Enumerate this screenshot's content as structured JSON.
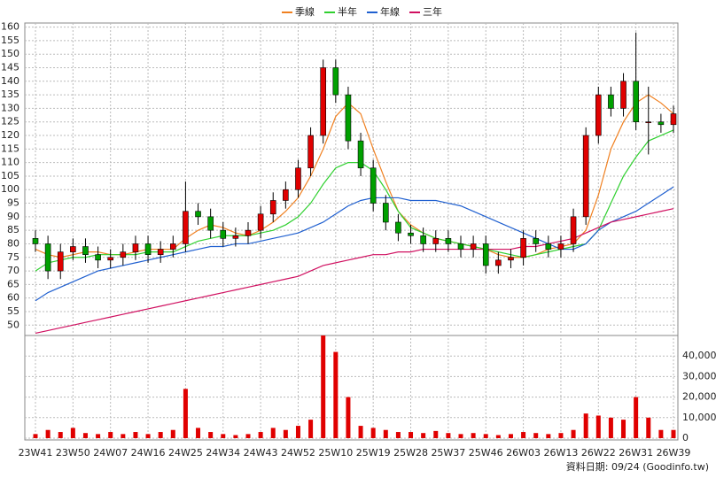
{
  "chart_data": {
    "type": "candlestick",
    "categories": [
      "23W41",
      null,
      null,
      "23W50",
      null,
      null,
      "24W07",
      null,
      null,
      "24W16",
      null,
      null,
      "24W25",
      null,
      null,
      "24W34",
      null,
      null,
      "24W43",
      null,
      null,
      "24W52",
      null,
      null,
      "25W10",
      null,
      null,
      "25W19",
      null,
      null,
      "25W28",
      null,
      null,
      "25W37",
      null,
      null,
      "25W46",
      null,
      null,
      "26W03",
      null,
      null,
      "26W13",
      null,
      null,
      "26W22",
      null,
      null,
      "26W31",
      null,
      null,
      "26W39"
    ],
    "open": [
      82,
      80,
      70,
      77,
      79,
      76,
      74,
      75,
      77,
      80,
      76,
      78,
      80,
      92,
      90,
      85,
      82,
      83,
      85,
      91,
      96,
      100,
      108,
      120,
      145,
      135,
      118,
      108,
      95,
      88,
      84,
      83,
      80,
      82,
      80,
      78,
      80,
      72,
      74,
      75,
      82,
      80,
      78,
      80,
      90,
      120,
      135,
      130,
      140,
      125,
      125,
      124
    ],
    "high": [
      85,
      83,
      80,
      82,
      82,
      79,
      78,
      80,
      83,
      83,
      81,
      83,
      103,
      95,
      93,
      88,
      86,
      88,
      94,
      99,
      103,
      111,
      123,
      148,
      148,
      138,
      121,
      111,
      98,
      91,
      87,
      86,
      85,
      85,
      83,
      83,
      83,
      77,
      78,
      85,
      85,
      83,
      83,
      93,
      123,
      138,
      138,
      143,
      158,
      138,
      128,
      131
    ],
    "low": [
      77,
      67,
      67,
      74,
      73,
      71,
      71,
      72,
      74,
      73,
      73,
      75,
      77,
      87,
      82,
      79,
      79,
      80,
      82,
      88,
      93,
      97,
      105,
      117,
      132,
      115,
      105,
      92,
      85,
      81,
      80,
      77,
      77,
      77,
      75,
      75,
      69,
      69,
      71,
      72,
      77,
      75,
      75,
      77,
      87,
      117,
      127,
      127,
      122,
      113,
      121,
      121
    ],
    "close": [
      80,
      70,
      77,
      79,
      76,
      74,
      75,
      77,
      80,
      76,
      78,
      80,
      92,
      90,
      85,
      82,
      83,
      85,
      91,
      96,
      100,
      108,
      120,
      145,
      135,
      118,
      108,
      95,
      88,
      84,
      83,
      80,
      82,
      80,
      78,
      80,
      72,
      74,
      75,
      82,
      80,
      78,
      80,
      90,
      120,
      135,
      130,
      140,
      125,
      125,
      124,
      128
    ],
    "volume": [
      2000,
      4000,
      3000,
      5000,
      2500,
      2000,
      3000,
      2000,
      3000,
      2000,
      3000,
      4000,
      24000,
      5000,
      3000,
      2000,
      1500,
      2000,
      3000,
      5000,
      4000,
      6000,
      9000,
      50000,
      42000,
      20000,
      6000,
      5000,
      4000,
      3000,
      3000,
      2500,
      3500,
      2500,
      2000,
      2500,
      2000,
      1500,
      2000,
      3000,
      2500,
      2000,
      2500,
      4000,
      12000,
      11000,
      10000,
      9000,
      20000,
      10000,
      4000,
      4000
    ],
    "up_color": "#e00000",
    "down_color": "#00a000",
    "volume_color": "#e00000",
    "series": [
      {
        "name": "季線",
        "color": "#f08020",
        "values": [
          78,
          76,
          75,
          76,
          77,
          77,
          76,
          76,
          77,
          78,
          78,
          78,
          82,
          85,
          87,
          86,
          84,
          83,
          85,
          88,
          92,
          97,
          105,
          115,
          127,
          132,
          128,
          115,
          103,
          92,
          87,
          84,
          82,
          81,
          80,
          79,
          78,
          76,
          75,
          75,
          76,
          78,
          79,
          80,
          85,
          98,
          115,
          125,
          132,
          135,
          132,
          128
        ]
      },
      {
        "name": "半年",
        "color": "#30d030",
        "values": [
          70,
          73,
          74,
          75,
          75,
          76,
          76,
          76,
          76,
          77,
          77,
          77,
          79,
          81,
          82,
          83,
          83,
          83,
          84,
          85,
          87,
          90,
          95,
          102,
          108,
          110,
          110,
          107,
          100,
          92,
          86,
          84,
          82,
          81,
          80,
          79,
          78,
          77,
          76,
          75,
          76,
          77,
          78,
          79,
          80,
          85,
          95,
          105,
          112,
          118,
          120,
          122
        ]
      },
      {
        "name": "年線",
        "color": "#2060d0",
        "values": [
          59,
          62,
          64,
          66,
          68,
          70,
          71,
          72,
          73,
          74,
          75,
          76,
          77,
          78,
          79,
          79,
          80,
          80,
          81,
          82,
          83,
          84,
          86,
          88,
          91,
          94,
          96,
          97,
          97,
          97,
          96,
          96,
          96,
          95,
          94,
          92,
          90,
          88,
          86,
          84,
          82,
          80,
          78,
          78,
          80,
          85,
          88,
          90,
          92,
          95,
          98,
          101
        ]
      },
      {
        "name": "三年",
        "color": "#d01060",
        "values": [
          47,
          48,
          49,
          50,
          51,
          52,
          53,
          54,
          55,
          56,
          57,
          58,
          59,
          60,
          61,
          62,
          63,
          64,
          65,
          66,
          67,
          68,
          70,
          72,
          73,
          74,
          75,
          76,
          76,
          77,
          77,
          78,
          78,
          78,
          78,
          78,
          78,
          78,
          78,
          79,
          79,
          80,
          81,
          82,
          84,
          86,
          88,
          89,
          90,
          91,
          92,
          93
        ]
      }
    ],
    "ylim": [
      46.5,
      161.5
    ],
    "yticks": [
      50,
      55,
      60,
      65,
      70,
      75,
      80,
      85,
      90,
      95,
      100,
      105,
      110,
      115,
      120,
      125,
      130,
      135,
      140,
      145,
      150,
      155,
      160
    ],
    "y2lim": [
      0,
      50000
    ],
    "y2ticks": [
      0,
      {
        "value": 10000,
        "label": "10,000"
      },
      {
        "value": 20000,
        "label": "20,000"
      },
      {
        "value": 30000,
        "label": "30,000"
      },
      {
        "value": 40000,
        "label": "40,000"
      }
    ],
    "grid": true,
    "legend": "top",
    "source": "資料日期: 09/24 (Goodinfo.tw)"
  }
}
